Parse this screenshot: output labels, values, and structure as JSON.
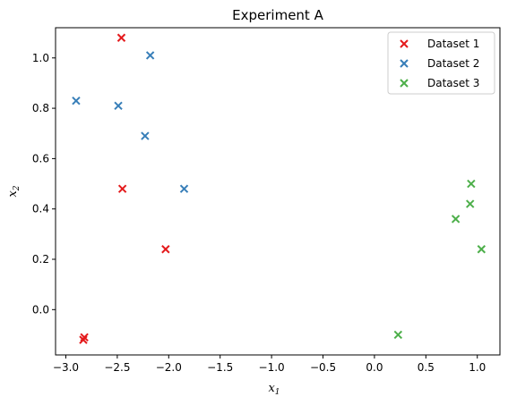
{
  "chart_data": {
    "type": "scatter",
    "title": "Experiment A",
    "xlabel": "x",
    "xlabel_sub": "1",
    "ylabel": "x",
    "ylabel_sub": "2",
    "xlim": [
      -3.1,
      1.22
    ],
    "ylim": [
      -0.18,
      1.12
    ],
    "xticks": [
      -3.0,
      -2.5,
      -2.0,
      -1.5,
      -1.0,
      -0.5,
      0.0,
      0.5,
      1.0
    ],
    "xtick_labels": [
      "−3.0",
      "−2.5",
      "−2.0",
      "−1.5",
      "−1.0",
      "−0.5",
      "0.0",
      "0.5",
      "1.0"
    ],
    "yticks": [
      0.0,
      0.2,
      0.4,
      0.6,
      0.8,
      1.0
    ],
    "ytick_labels": [
      "0.0",
      "0.2",
      "0.4",
      "0.6",
      "0.8",
      "1.0"
    ],
    "marker": "x",
    "grid": false,
    "legend_position": "top-right",
    "series": [
      {
        "name": "Dataset 1",
        "color": "#e41a1c",
        "points": [
          [
            -2.46,
            1.08
          ],
          [
            -2.45,
            0.48
          ],
          [
            -2.03,
            0.24
          ],
          [
            -2.83,
            -0.12
          ],
          [
            -2.82,
            -0.11
          ]
        ]
      },
      {
        "name": "Dataset 2",
        "color": "#377eb8",
        "points": [
          [
            -2.18,
            1.01
          ],
          [
            -2.9,
            0.83
          ],
          [
            -2.49,
            0.81
          ],
          [
            -2.23,
            0.69
          ],
          [
            -1.85,
            0.48
          ]
        ]
      },
      {
        "name": "Dataset 3",
        "color": "#4daf4a",
        "points": [
          [
            0.94,
            0.5
          ],
          [
            0.93,
            0.42
          ],
          [
            0.79,
            0.36
          ],
          [
            1.04,
            0.24
          ],
          [
            0.23,
            -0.1
          ]
        ]
      }
    ]
  }
}
